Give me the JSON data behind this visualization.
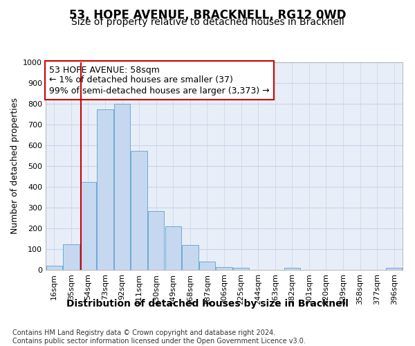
{
  "title": "53, HOPE AVENUE, BRACKNELL, RG12 0WD",
  "subtitle": "Size of property relative to detached houses in Bracknell",
  "xlabel": "Distribution of detached houses by size in Bracknell",
  "ylabel": "Number of detached properties",
  "categories": [
    "16sqm",
    "35sqm",
    "54sqm",
    "73sqm",
    "92sqm",
    "111sqm",
    "130sqm",
    "149sqm",
    "168sqm",
    "187sqm",
    "206sqm",
    "225sqm",
    "244sqm",
    "263sqm",
    "282sqm",
    "301sqm",
    "320sqm",
    "339sqm",
    "358sqm",
    "377sqm",
    "396sqm"
  ],
  "values": [
    20,
    125,
    425,
    775,
    800,
    575,
    285,
    210,
    120,
    40,
    15,
    10,
    0,
    0,
    10,
    0,
    0,
    0,
    0,
    0,
    10
  ],
  "bar_color": "#c5d8f0",
  "bar_edge_color": "#6aaad4",
  "vline_x": 1.575,
  "vline_color": "#cc0000",
  "annotation_text": "53 HOPE AVENUE: 58sqm\n← 1% of detached houses are smaller (37)\n99% of semi-detached houses are larger (3,373) →",
  "annotation_box_color": "#ffffff",
  "annotation_box_edge": "#cc0000",
  "ylim": [
    0,
    1000
  ],
  "yticks": [
    0,
    100,
    200,
    300,
    400,
    500,
    600,
    700,
    800,
    900,
    1000
  ],
  "grid_color": "#c8d4e8",
  "bg_color": "#e8eef8",
  "footer": "Contains HM Land Registry data © Crown copyright and database right 2024.\nContains public sector information licensed under the Open Government Licence v3.0.",
  "title_fontsize": 12,
  "subtitle_fontsize": 10,
  "xlabel_fontsize": 10,
  "ylabel_fontsize": 9,
  "tick_fontsize": 8,
  "annotation_fontsize": 9,
  "footer_fontsize": 7
}
